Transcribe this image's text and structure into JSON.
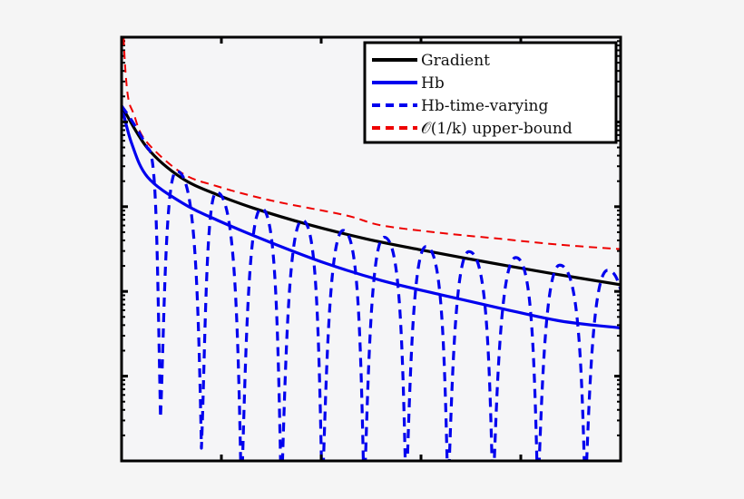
{
  "chart_data": {
    "type": "line",
    "title": "",
    "xlabel": "",
    "ylabel": "",
    "y_scale": "log",
    "grid": false,
    "legend_position": "upper right",
    "axis_units_note": "No tick labels are shown; x and y expressed in tick-interval units (x: 0-5, y: 0-5 from bottom).",
    "xlim": [
      0,
      5
    ],
    "ylim": [
      0,
      5
    ],
    "x_ticks": [
      1,
      2,
      3,
      4
    ],
    "y_ticks": [
      1,
      2,
      3,
      4
    ],
    "series": [
      {
        "name": "Gradient",
        "color": "#000000",
        "style": "solid",
        "points": [
          [
            0,
            4.19
          ],
          [
            0.26,
            3.69
          ],
          [
            0.6,
            3.34
          ],
          [
            0.96,
            3.14
          ],
          [
            1.33,
            2.98
          ],
          [
            1.87,
            2.79
          ],
          [
            2.45,
            2.62
          ],
          [
            3.0,
            2.49
          ],
          [
            3.64,
            2.35
          ],
          [
            4.27,
            2.22
          ],
          [
            4.99,
            2.08
          ]
        ]
      },
      {
        "name": "Hb",
        "color": "#0000ee",
        "style": "solid",
        "points": [
          [
            0,
            4.19
          ],
          [
            0.1,
            3.75
          ],
          [
            0.26,
            3.35
          ],
          [
            0.6,
            3.05
          ],
          [
            0.96,
            2.84
          ],
          [
            1.51,
            2.57
          ],
          [
            2.05,
            2.33
          ],
          [
            2.6,
            2.13
          ],
          [
            3.2,
            1.96
          ],
          [
            3.8,
            1.8
          ],
          [
            4.4,
            1.65
          ],
          [
            4.99,
            1.57
          ]
        ]
      },
      {
        "name": "Hb-time-varying",
        "color": "#0000ee",
        "style": "dashed",
        "peaks": [
          [
            0.55,
            3.42
          ],
          [
            0.95,
            3.17
          ],
          [
            1.4,
            2.98
          ],
          [
            1.81,
            2.84
          ],
          [
            2.22,
            2.72
          ],
          [
            2.63,
            2.64
          ],
          [
            3.05,
            2.53
          ],
          [
            3.48,
            2.47
          ],
          [
            3.95,
            2.4
          ],
          [
            4.39,
            2.31
          ],
          [
            4.87,
            2.25
          ]
        ],
        "dips": [
          [
            0.39,
            0.51
          ],
          [
            0.8,
            0.15
          ],
          [
            1.2,
            0
          ],
          [
            1.6,
            0
          ],
          [
            2.01,
            0
          ],
          [
            2.43,
            0
          ],
          [
            2.85,
            0
          ],
          [
            3.27,
            0
          ],
          [
            3.72,
            0
          ],
          [
            4.17,
            0
          ],
          [
            4.645,
            0
          ]
        ],
        "end_point": [
          5.0,
          2.02
        ]
      },
      {
        "name": "O(1/k) upper-bound",
        "color": "#ee0000",
        "style": "dashed",
        "points": [
          [
            0.02,
            5.0
          ],
          [
            0.04,
            4.58
          ],
          [
            0.07,
            4.26
          ],
          [
            0.12,
            4.1
          ],
          [
            0.24,
            3.78
          ],
          [
            0.6,
            3.4
          ],
          [
            0.96,
            3.24
          ],
          [
            1.51,
            3.07
          ],
          [
            2.24,
            2.9
          ],
          [
            2.6,
            2.78
          ],
          [
            3.2,
            2.69
          ],
          [
            3.8,
            2.62
          ],
          [
            4.4,
            2.55
          ],
          [
            4.99,
            2.5
          ]
        ]
      }
    ]
  },
  "legend": {
    "items": [
      {
        "label": "Gradient",
        "color": "#000000",
        "style": "solid"
      },
      {
        "label": "Hb",
        "color": "#0000ee",
        "style": "solid"
      },
      {
        "label": "Hb-time-varying",
        "color": "#0000ee",
        "style": "dashed"
      },
      {
        "label": "𝒪(1/k) upper-bound",
        "color": "#ee0000",
        "style": "dashed"
      }
    ]
  },
  "colors": {
    "background": "#f5f5f5",
    "plot_background": "#f5f5f7",
    "axis": "#000000"
  }
}
